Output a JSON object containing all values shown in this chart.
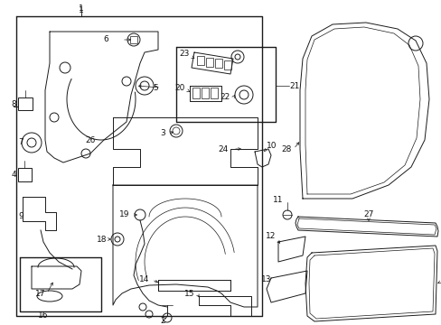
{
  "bg_color": "#ffffff",
  "line_color": "#1a1a1a",
  "label_color": "#111111",
  "fig_width": 4.89,
  "fig_height": 3.6,
  "dpi": 100
}
